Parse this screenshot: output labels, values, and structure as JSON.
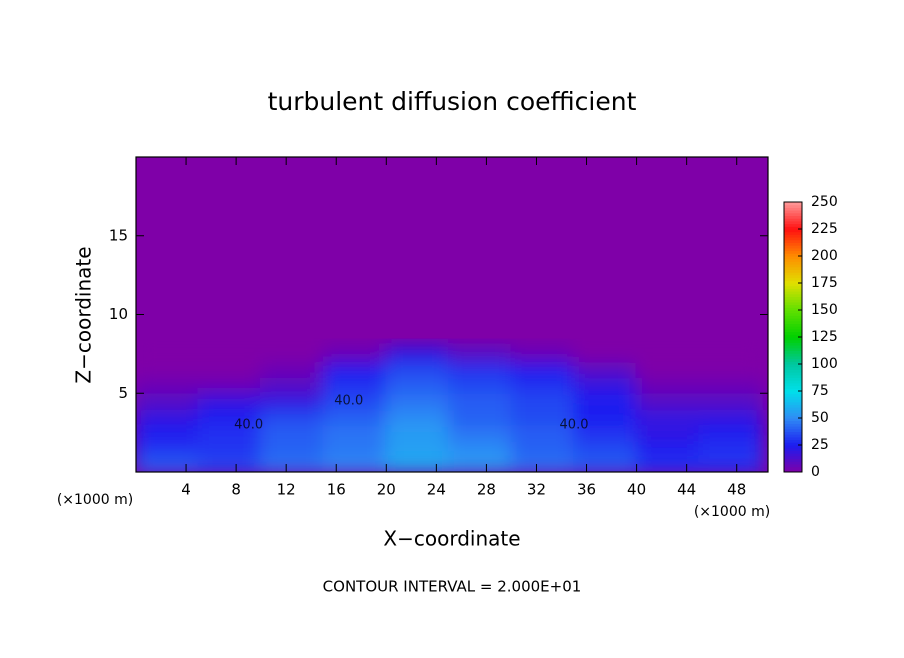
{
  "chart_data": {
    "type": "heatmap",
    "title": "turbulent diffusion coefficient",
    "x_label": "X−coordinate",
    "y_label": "Z−coordinate",
    "x_unit": "(×1000 m)",
    "y_unit": "(×1000 m)",
    "footnote": "CONTOUR INTERVAL = 2.000E+01",
    "xlim": [
      0,
      50.5
    ],
    "ylim": [
      0,
      20
    ],
    "xticks": [
      4,
      8,
      12,
      16,
      20,
      24,
      28,
      32,
      36,
      40,
      44,
      48
    ],
    "yticks": [
      5,
      10,
      15
    ],
    "field": {
      "x": [
        2.5,
        7.5,
        12.5,
        17.5,
        22.5,
        27.5,
        32.5,
        37.5,
        42.5,
        47.5
      ],
      "y": [
        0.5,
        1.5,
        2.5,
        3.5,
        4.5,
        5.5,
        6.5,
        7.5
      ],
      "values": [
        [
          40,
          35,
          45,
          50,
          60,
          55,
          45,
          40,
          30,
          30
        ],
        [
          30,
          30,
          40,
          45,
          55,
          50,
          40,
          35,
          25,
          30
        ],
        [
          25,
          30,
          40,
          45,
          55,
          45,
          40,
          30,
          20,
          25
        ],
        [
          20,
          25,
          35,
          40,
          50,
          40,
          35,
          25,
          20,
          20
        ],
        [
          10,
          20,
          20,
          35,
          45,
          40,
          35,
          25,
          10,
          10
        ],
        [
          5,
          5,
          10,
          30,
          40,
          35,
          30,
          20,
          5,
          5
        ],
        [
          0,
          0,
          5,
          25,
          35,
          30,
          25,
          10,
          0,
          0
        ],
        [
          0,
          0,
          0,
          5,
          20,
          10,
          5,
          0,
          0,
          0
        ]
      ]
    },
    "contour_labels": [
      {
        "text": "40.0",
        "x": 9,
        "y": 3
      },
      {
        "text": "40.0",
        "x": 17,
        "y": 4.5
      },
      {
        "text": "40.0",
        "x": 35,
        "y": 3
      }
    ],
    "colorbar": {
      "lim": [
        0,
        250
      ],
      "ticks": [
        0,
        25,
        50,
        75,
        100,
        125,
        150,
        175,
        200,
        225,
        250
      ],
      "colors": [
        "#7f00a8",
        "#1c1cf0",
        "#2f8cf5",
        "#00e0ea",
        "#00c8a0",
        "#00d000",
        "#60e000",
        "#e0e000",
        "#ff8c00",
        "#ff1010",
        "#ff9a9a"
      ]
    }
  }
}
